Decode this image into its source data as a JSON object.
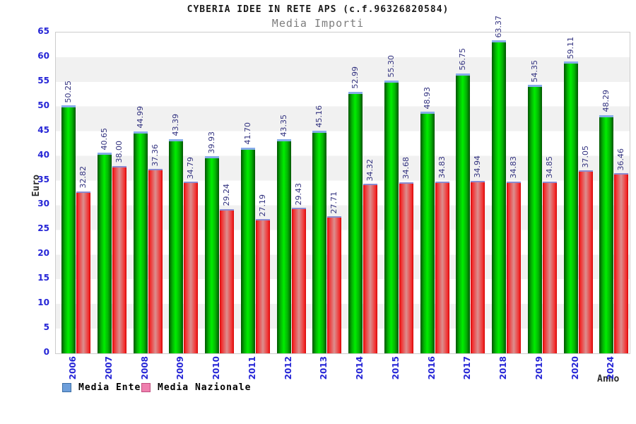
{
  "header": {
    "title": "CYBERIA IDEE IN RETE APS (c.f.96326820584)",
    "subtitle": "Media Importi"
  },
  "chart_data": {
    "type": "bar",
    "title": "CYBERIA IDEE IN RETE APS (c.f.96326820584)",
    "subtitle": "Media Importi",
    "xlabel": "Anno",
    "ylabel": "Euro",
    "ylim": [
      0,
      65
    ],
    "ytick_step": 5,
    "grid": "alternating-horizontal-bands",
    "legend_position": "bottom-left",
    "categories": [
      "2006",
      "2007",
      "2008",
      "2009",
      "2010",
      "2011",
      "2012",
      "2013",
      "2014",
      "2015",
      "2016",
      "2017",
      "2018",
      "2019",
      "2020",
      "2024"
    ],
    "series": [
      {
        "name": "Media Ente",
        "bar_color": "green",
        "values": [
          50.25,
          40.65,
          44.99,
          43.39,
          39.93,
          41.7,
          43.35,
          45.16,
          52.99,
          55.3,
          48.93,
          56.75,
          63.37,
          54.35,
          59.11,
          48.29
        ]
      },
      {
        "name": "Media Nazionale",
        "bar_color": "red",
        "values": [
          32.82,
          38.0,
          37.36,
          34.79,
          29.24,
          27.19,
          29.43,
          27.71,
          34.32,
          34.68,
          34.83,
          34.94,
          34.83,
          34.85,
          37.05,
          36.46
        ]
      }
    ]
  },
  "legend": {
    "items": [
      {
        "label": "Media Ente",
        "swatch_color": "#6d9eda"
      },
      {
        "label": "Media Nazionale",
        "swatch_color": "#ef7fae"
      }
    ]
  },
  "colors": {
    "tick_label": "#2525d6",
    "value_label": "#333380",
    "green_bar": "#00ee00",
    "red_bar": "#f22c2c",
    "band_gray": "#f1f1f1",
    "plot_border": "#cccccc"
  }
}
